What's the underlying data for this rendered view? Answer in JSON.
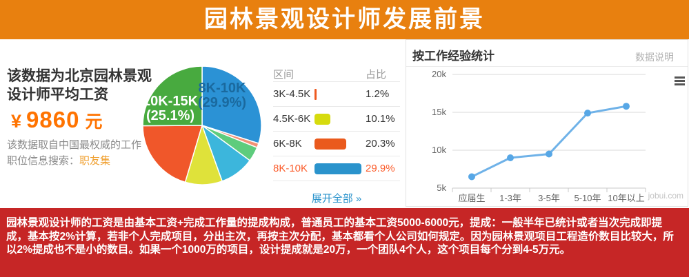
{
  "page": {
    "accent_orange": "#E8800F",
    "accent_red": "#C62626",
    "salary_color": "#FF7300",
    "link_blue": "#2A93CC",
    "link_orange": "#F0A030",
    "highlight_orange": "#FB5D2C"
  },
  "header": {
    "title": "园林景观设计师发展前景"
  },
  "left_panel": {
    "heading": "该数据为北京园林景观设计师平均工资",
    "salary_currency": "¥",
    "salary_amount": "9860",
    "salary_unit": "元",
    "source_line1": "该数据取自中国最权威的工作",
    "source_line2_prefix": "职位信息搜索：",
    "source_link": "职友集"
  },
  "salary_table": {
    "col_range": "区间",
    "col_share": "占比",
    "rows": [
      {
        "range": "3K-4.5K",
        "share": "1.2%",
        "share_value": 1.2,
        "bar_color": "#EE5A20",
        "highlight": false
      },
      {
        "range": "4.5K-6K",
        "share": "10.1%",
        "share_value": 10.1,
        "bar_color": "#D6DB0E",
        "highlight": false
      },
      {
        "range": "6K-8K",
        "share": "20.3%",
        "share_value": 20.3,
        "bar_color": "#EA5A1D",
        "highlight": false
      },
      {
        "range": "8K-10K",
        "share": "29.9%",
        "share_value": 29.9,
        "bar_color": "#2A93CC",
        "highlight": true
      }
    ],
    "expand_link": "展开全部 »"
  },
  "right_panel": {
    "title": "按工作经验统计",
    "info_link": "数据说明"
  },
  "chart_data": [
    {
      "type": "pie",
      "description": "北京园林景观设计师工资区间占比",
      "start": "top",
      "direction": "clockwise",
      "slices": [
        {
          "label": "8K-10K",
          "pct": 29.9,
          "pct_text": "(29.9%)",
          "color": "#2B92D5",
          "label_color": "#1A699E"
        },
        {
          "label": "",
          "pct": 1.2,
          "color": "#F29175"
        },
        {
          "label": "",
          "pct": 4.0,
          "color": "#5ECC7D"
        },
        {
          "label": "",
          "pct": 9.4,
          "color": "#3CB6DC"
        },
        {
          "label": "",
          "pct": 10.1,
          "color": "#DFE23A"
        },
        {
          "label": "",
          "pct": 20.3,
          "color": "#F0572A"
        },
        {
          "label": "10K-15K",
          "pct": 25.1,
          "pct_text": "(25.1%)",
          "color": "#48AA3F",
          "label_color": "#FFFFFF"
        }
      ]
    },
    {
      "type": "line",
      "title": "按工作经验统计",
      "categories": [
        "应届生",
        "1-3年",
        "3-5年",
        "5-10年",
        "10年以上"
      ],
      "values": [
        6500,
        9000,
        9500,
        14900,
        15800
      ],
      "y_ticks": [
        {
          "label": "20k",
          "value": 20000
        },
        {
          "label": "15k",
          "value": 15000
        },
        {
          "label": "10k",
          "value": 10000
        },
        {
          "label": "5k",
          "value": 5000
        }
      ],
      "ylim": [
        5000,
        20000
      ],
      "grid": true,
      "legend": "none",
      "line_color": "#6FB2E8",
      "point_color": "#57A7E6",
      "watermark": "jobui.com"
    }
  ],
  "footer": {
    "text": "园林景观设计师的工资是由基本工资+完成工作量的提成构成，普通员工的基本工资5000-6000元，提成：一般半年已统计或者当次完成即提成，基本按2%计算，若非个人完成项目，分出主次，再按主次分配，基本都看个人公司如何规定。因为园林景观项目工程造价数目比较大，所以2%提成也不是小的数目。如果一个1000万的项目，设计提成就是20万，一个团队4个人，这个项目每个分到4-5万元。"
  }
}
